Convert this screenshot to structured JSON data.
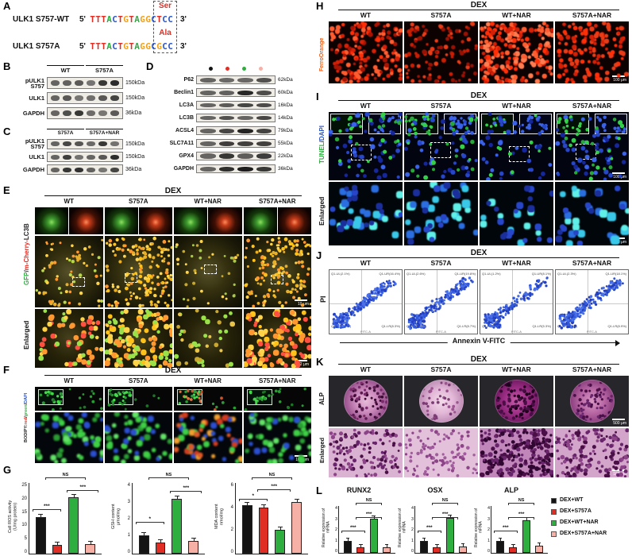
{
  "ui": {
    "series_colors": [
      "#141414",
      "#e02e24",
      "#2eae3e",
      "#f6b0a6"
    ]
  },
  "dex": "DEX",
  "treatments": [
    "WT",
    "S757A",
    "WT+NAR",
    "S757A+NAR"
  ],
  "panelA": {
    "label": "A",
    "rows": [
      {
        "name": "ULK1 S757-WT",
        "p5": "5'",
        "seq": "TTTACTGTAGGC",
        "codon": "TCC",
        "p3": "3'",
        "residue": "Ser"
      },
      {
        "name": "ULK1 S757A",
        "p5": "5'",
        "seq": "TTTACTGTAGGC",
        "codon": "GCC",
        "p3": "3'",
        "residue": "Ala"
      }
    ],
    "base_colors": {
      "T": "#e02e24",
      "A": "#2eae3e",
      "C": "#2c57c8",
      "G": "#f0a21d"
    },
    "residue_color": "#e02e24"
  },
  "panelB": {
    "label": "B",
    "groups": [
      "WT",
      "S757A"
    ],
    "rows": [
      {
        "name": "pULK1\nS757",
        "kda": "150kDa"
      },
      {
        "name": "ULK1",
        "kda": "150kDa"
      },
      {
        "name": "GAPDH",
        "kda": "36kDa"
      }
    ]
  },
  "panelC": {
    "label": "C",
    "groups": [
      "S757A",
      "S757A+NAR"
    ],
    "rows": [
      {
        "name": "pULK1\nS757",
        "kda": "150kDa"
      },
      {
        "name": "ULK1",
        "kda": "150kDa"
      },
      {
        "name": "GAPDH",
        "kda": "36kDa"
      }
    ]
  },
  "panelD": {
    "label": "D",
    "lane_dot_colors": [
      "#141414",
      "#e02e24",
      "#2eae3e",
      "#f6b0a6"
    ],
    "rows": [
      {
        "name": "P62",
        "kda": "62kDa"
      },
      {
        "name": "Beclin1",
        "kda": "60kDa"
      },
      {
        "name": "LC3A",
        "kda": "16kDa"
      },
      {
        "name": "LC3B",
        "kda": "14kDa"
      },
      {
        "name": "ACSL4",
        "kda": "79kDa"
      },
      {
        "name": "SLC7A11",
        "kda": "55kDa"
      },
      {
        "name": "GPX4",
        "kda": "22kDa"
      },
      {
        "name": "GAPDH",
        "kda": "36kDa"
      }
    ]
  },
  "panelE": {
    "label": "E",
    "side": [
      {
        "text": "GFP",
        "color": "#2eae3e"
      },
      {
        "text": "/",
        "color": "#222222"
      },
      {
        "text": "m-Cherry-",
        "color": "#e02e24"
      },
      {
        "text": "LC3B",
        "color": "#222222"
      }
    ],
    "enlarged": "Enlarged",
    "scale_mid": "10 μm",
    "scale_enlarged": "2 μm"
  },
  "panelF": {
    "label": "F",
    "side": [
      {
        "text": "BODIPY:",
        "color": "#222222"
      },
      {
        "text": "red",
        "color": "#e02e24"
      },
      {
        "text": "/",
        "color": "#222222"
      },
      {
        "text": "green",
        "color": "#2eae3e"
      },
      {
        "text": "/",
        "color": "#222222"
      },
      {
        "text": "DAPI",
        "color": "#2c57c8"
      }
    ],
    "scale": "100 μm"
  },
  "panelG": {
    "label": "G",
    "categories": [
      "DEX+WT",
      "DEX+S757A",
      "DEX+WT+NAR",
      "DEX+S757A+NAR"
    ],
    "charts": [
      {
        "type": "bar",
        "ylabel": "Cell ROS activity\n(U/mg protein)",
        "ymax": 25,
        "yticks": [
          "25",
          "20",
          "15",
          "10",
          "5",
          "0"
        ],
        "values": [
          13,
          3.2,
          20,
          3.4
        ],
        "sig": [
          "***",
          "***",
          "NS"
        ]
      },
      {
        "type": "bar",
        "ylabel": "GSH content\nμmol/mg",
        "ymax": 4,
        "yticks": [
          "4",
          "3",
          "2",
          "1",
          "0"
        ],
        "values": [
          1.05,
          0.62,
          3.1,
          0.7
        ],
        "sig": [
          "*",
          "***",
          "NS"
        ]
      },
      {
        "type": "bar",
        "ylabel": "MDA content\nnmol/mg",
        "ymax": 6,
        "yticks": [
          "6",
          "4",
          "2",
          "0"
        ],
        "values": [
          4.1,
          3.9,
          2.0,
          4.4
        ],
        "sig": [
          "*",
          "***",
          "NS"
        ]
      }
    ]
  },
  "panelH": {
    "label": "H",
    "side": "FerroOrange",
    "side_color": "#e8601c",
    "scale": "100 μm"
  },
  "panelI": {
    "label": "I",
    "side": [
      {
        "text": "TUNEL",
        "color": "#2eae3e"
      },
      {
        "text": "/",
        "color": "#222222"
      },
      {
        "text": "DAPI",
        "color": "#2c57c8"
      }
    ],
    "enlarged": "Enlarged",
    "scale_main": "100 μm",
    "scale_enlarged": "50 μm"
  },
  "panelJ": {
    "label": "J",
    "ylabel": "PI",
    "xlabel": "Annexin V-FITC",
    "axis": "FITC-A",
    "plots": [
      {
        "ul": "Q1-UL(2.1%)",
        "ur": "Q1-UR(16.4%)",
        "ll": "Q1-LL(73.2%)",
        "lr": "Q1-LR(8.3%)"
      },
      {
        "ul": "Q1-UL(2.6%)",
        "ur": "Q1-UR(19.8%)",
        "ll": "Q1-LL(68.9%)",
        "lr": "Q1-LR(8.7%)"
      },
      {
        "ul": "Q1-UL(1.2%)",
        "ur": "Q1-UR(8.1%)",
        "ll": "Q1-LL(85.4%)",
        "lr": "Q1-LR(5.3%)"
      },
      {
        "ul": "Q1-UL(2.3%)",
        "ur": "Q1-UR(18.1%)",
        "ll": "Q1-LL(70.7%)",
        "lr": "Q1-LR(8.9%)"
      }
    ]
  },
  "panelK": {
    "label": "K",
    "row1": "ALP",
    "row2": "Enlarged",
    "scale_row1": "500 μm",
    "scale_row2": "100 μm"
  },
  "panelL": {
    "label": "L",
    "ylabel": "Relative expression of\nmRNA",
    "charts": [
      {
        "type": "bar",
        "title": "RUNX2",
        "ymax": 4,
        "yticks": [
          "4",
          "3",
          "2",
          "1",
          "0"
        ],
        "values": [
          1.0,
          0.45,
          2.9,
          0.5
        ],
        "sig": [
          "***",
          "***",
          "NS"
        ]
      },
      {
        "type": "bar",
        "title": "OSX",
        "ymax": 4,
        "yticks": [
          "4",
          "3",
          "2",
          "1",
          "0"
        ],
        "values": [
          1.0,
          0.5,
          3.0,
          0.55
        ],
        "sig": [
          "***",
          "***",
          "NS"
        ]
      },
      {
        "type": "bar",
        "title": "ALP",
        "ymax": 4,
        "yticks": [
          "4",
          "3",
          "2",
          "1",
          "0"
        ],
        "values": [
          1.0,
          0.5,
          2.75,
          0.6
        ],
        "sig": [
          "***",
          "***",
          "NS"
        ]
      }
    ],
    "legend": [
      {
        "label": "DEX+WT",
        "color": "#141414"
      },
      {
        "label": "DEX+S757A",
        "color": "#e02e24"
      },
      {
        "label": "DEX+WT+NAR",
        "color": "#2eae3e"
      },
      {
        "label": "DEX+S757A+NAR",
        "color": "#f6b0a6"
      }
    ]
  }
}
